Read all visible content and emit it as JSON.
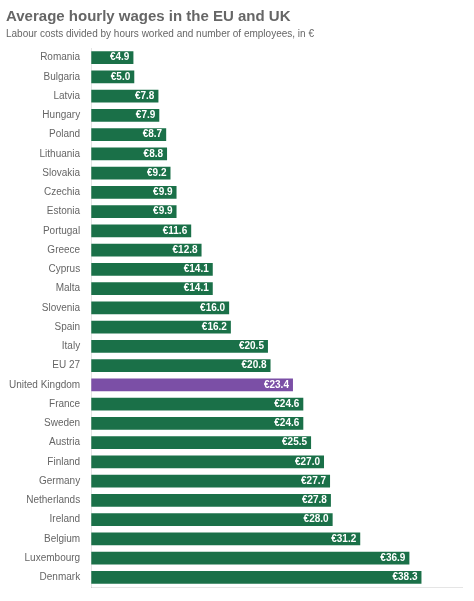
{
  "chart_data": {
    "type": "bar",
    "orientation": "horizontal",
    "title": "Average hourly wages in the EU and UK",
    "subtitle": "Labour costs divided by hours worked and number of employees, in €",
    "categories": [
      "Romania",
      "Bulgaria",
      "Latvia",
      "Hungary",
      "Poland",
      "Lithuania",
      "Slovakia",
      "Czechia",
      "Estonia",
      "Portugal",
      "Greece",
      "Cyprus",
      "Malta",
      "Slovenia",
      "Spain",
      "Italy",
      "EU 27",
      "United Kingdom",
      "France",
      "Sweden",
      "Austria",
      "Finland",
      "Germany",
      "Netherlands",
      "Ireland",
      "Belgium",
      "Luxembourg",
      "Denmark"
    ],
    "values": [
      4.9,
      5.0,
      7.8,
      7.9,
      8.7,
      8.8,
      9.2,
      9.9,
      9.9,
      11.6,
      12.8,
      14.1,
      14.1,
      16.0,
      16.2,
      20.5,
      20.8,
      23.4,
      24.6,
      24.6,
      25.5,
      27.0,
      27.7,
      27.8,
      28.0,
      31.2,
      36.9,
      38.3
    ],
    "value_labels": [
      "€4.9",
      "€5.0",
      "€7.8",
      "€7.9",
      "€8.7",
      "€8.8",
      "€9.2",
      "€9.9",
      "€9.9",
      "€11.6",
      "€12.8",
      "€14.1",
      "€14.1",
      "€16.0",
      "€16.2",
      "€20.5",
      "€20.8",
      "€23.4",
      "€24.6",
      "€24.6",
      "€25.5",
      "€27.0",
      "€27.7",
      "€27.8",
      "€28.0",
      "€31.2",
      "€36.9",
      "€38.3"
    ],
    "colors": [
      "#1a7048",
      "#1a7048",
      "#1a7048",
      "#1a7048",
      "#1a7048",
      "#1a7048",
      "#1a7048",
      "#1a7048",
      "#1a7048",
      "#1a7048",
      "#1a7048",
      "#1a7048",
      "#1a7048",
      "#1a7048",
      "#1a7048",
      "#1a7048",
      "#1a7048",
      "#7b4fa6",
      "#1a7048",
      "#1a7048",
      "#1a7048",
      "#1a7048",
      "#1a7048",
      "#1a7048",
      "#1a7048",
      "#1a7048",
      "#1a7048",
      "#1a7048"
    ],
    "xlim": [
      0,
      43
    ],
    "data_labels": true,
    "tick_labels": "y",
    "grid": false
  }
}
